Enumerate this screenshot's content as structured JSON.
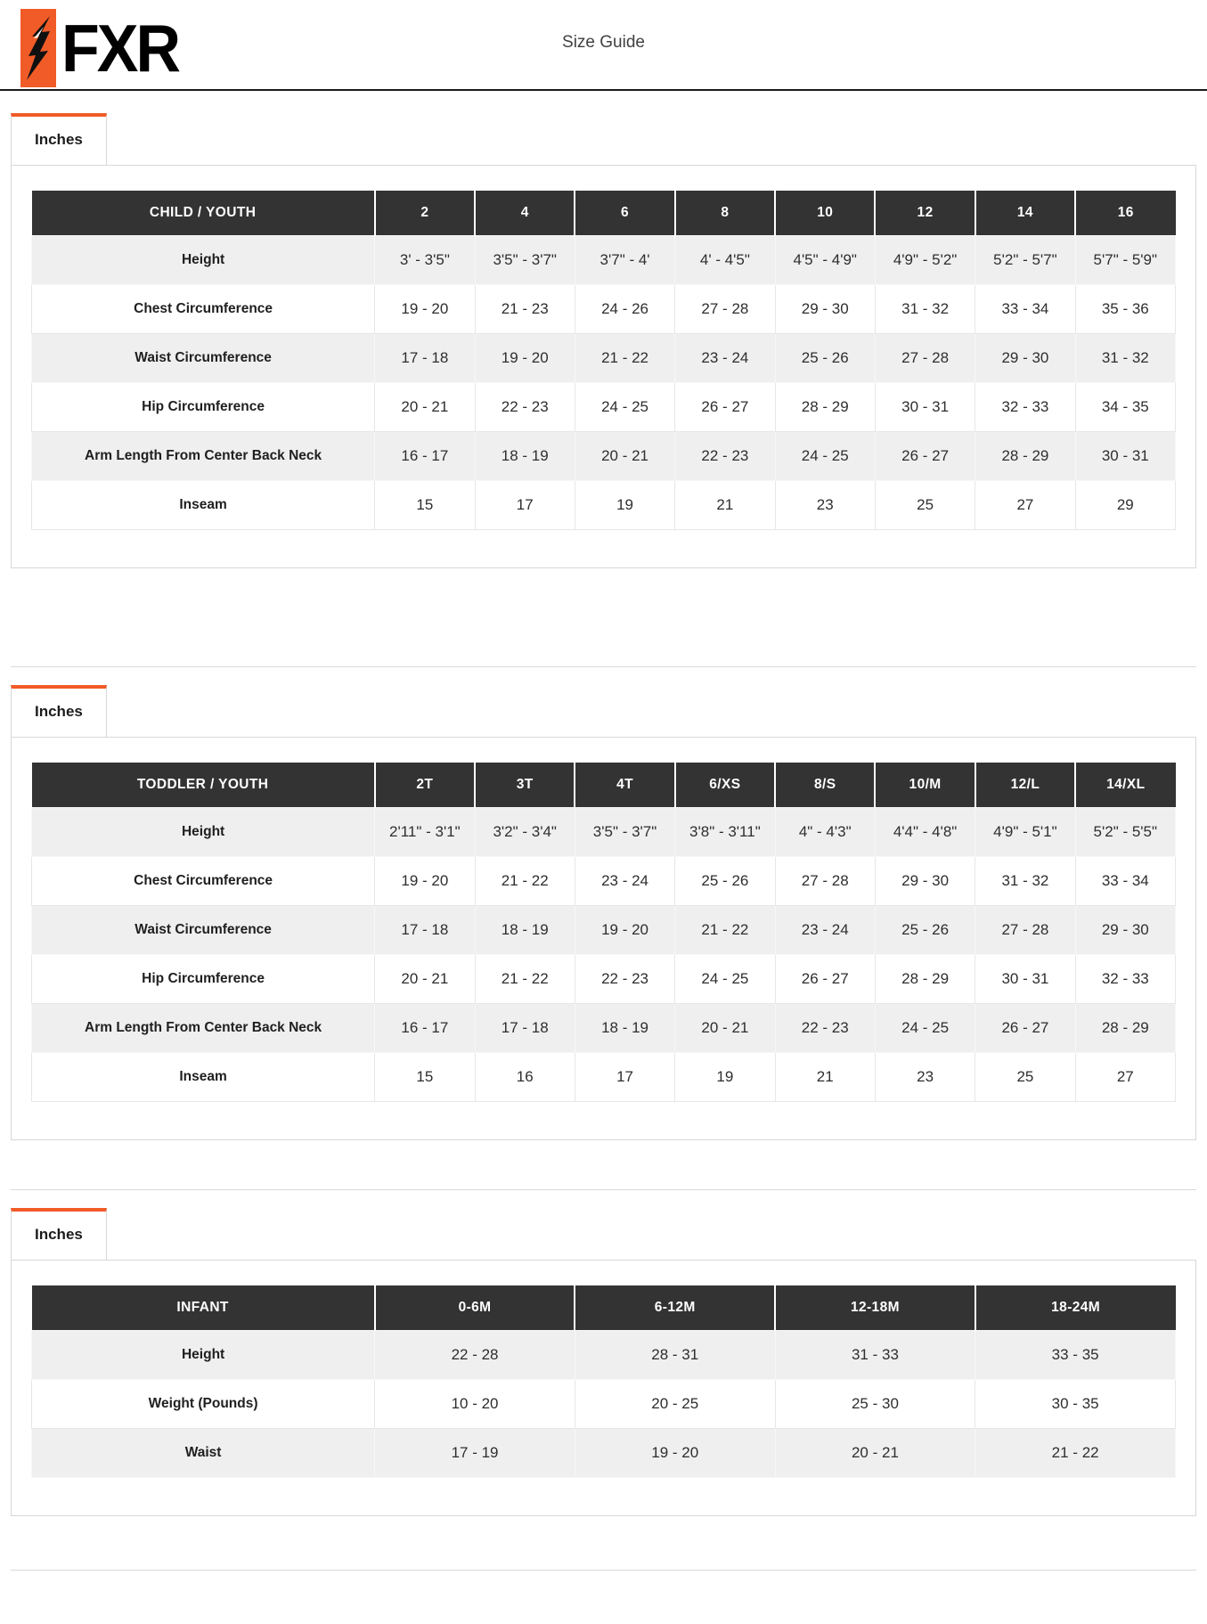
{
  "brand": {
    "logo_text": "FXR",
    "accent_color": "#F15B27",
    "table_header_color": "#333333",
    "row_stripe_color": "#EFEFEF"
  },
  "header": {
    "title": "Size Guide"
  },
  "sections": [
    {
      "tab_label": "Inches",
      "table": {
        "columns": [
          "CHILD / YOUTH",
          "2",
          "4",
          "6",
          "8",
          "10",
          "12",
          "14",
          "16"
        ],
        "rows": [
          {
            "label": "Height",
            "values": [
              "3' - 3'5\"",
              "3'5\" - 3'7\"",
              "3'7\" - 4'",
              "4' - 4'5\"",
              "4'5\" - 4'9\"",
              "4'9\" - 5'2\"",
              "5'2\" - 5'7\"",
              "5'7\" - 5'9\""
            ]
          },
          {
            "label": "Chest Circumference",
            "values": [
              "19 - 20",
              "21 - 23",
              "24 - 26",
              "27 - 28",
              "29 - 30",
              "31 - 32",
              "33 - 34",
              "35 - 36"
            ]
          },
          {
            "label": "Waist Circumference",
            "values": [
              "17 - 18",
              "19 - 20",
              "21 - 22",
              "23 - 24",
              "25 - 26",
              "27 - 28",
              "29 - 30",
              "31 - 32"
            ]
          },
          {
            "label": "Hip Circumference",
            "values": [
              "20 - 21",
              "22 - 23",
              "24 - 25",
              "26 - 27",
              "28 - 29",
              "30 - 31",
              "32 - 33",
              "34 - 35"
            ]
          },
          {
            "label": "Arm Length From Center Back Neck",
            "values": [
              "16 - 17",
              "18 - 19",
              "20 - 21",
              "22 - 23",
              "24 - 25",
              "26 - 27",
              "28 - 29",
              "30 - 31"
            ]
          },
          {
            "label": "Inseam",
            "values": [
              "15",
              "17",
              "19",
              "21",
              "23",
              "25",
              "27",
              "29"
            ]
          }
        ]
      }
    },
    {
      "tab_label": "Inches",
      "table": {
        "columns": [
          "TODDLER / YOUTH",
          "2T",
          "3T",
          "4T",
          "6/XS",
          "8/S",
          "10/M",
          "12/L",
          "14/XL"
        ],
        "rows": [
          {
            "label": "Height",
            "values": [
              "2'11\" - 3'1\"",
              "3'2\" - 3'4\"",
              "3'5\" - 3'7\"",
              "3'8\" - 3'11\"",
              "4\" - 4'3\"",
              "4'4\" - 4'8\"",
              "4'9\" - 5'1\"",
              "5'2\" - 5'5\""
            ]
          },
          {
            "label": "Chest Circumference",
            "values": [
              "19 - 20",
              "21 - 22",
              "23 - 24",
              "25 - 26",
              "27 - 28",
              "29 - 30",
              "31 - 32",
              "33 - 34"
            ]
          },
          {
            "label": "Waist Circumference",
            "values": [
              "17 - 18",
              "18 - 19",
              "19 - 20",
              "21 - 22",
              "23 - 24",
              "25 - 26",
              "27 - 28",
              "29 - 30"
            ]
          },
          {
            "label": "Hip Circumference",
            "values": [
              "20 - 21",
              "21 - 22",
              "22 - 23",
              "24 - 25",
              "26 - 27",
              "28 - 29",
              "30 - 31",
              "32 - 33"
            ]
          },
          {
            "label": "Arm Length From Center Back Neck",
            "values": [
              "16 - 17",
              "17 - 18",
              "18 - 19",
              "20 - 21",
              "22 - 23",
              "24 - 25",
              "26 - 27",
              "28 - 29"
            ]
          },
          {
            "label": "Inseam",
            "values": [
              "15",
              "16",
              "17",
              "19",
              "21",
              "23",
              "25",
              "27"
            ]
          }
        ]
      }
    },
    {
      "tab_label": "Inches",
      "table": {
        "columns": [
          "INFANT",
          "0-6M",
          "6-12M",
          "12-18M",
          "18-24M"
        ],
        "rows": [
          {
            "label": "Height",
            "values": [
              "22 - 28",
              "28 - 31",
              "31 - 33",
              "33 - 35"
            ]
          },
          {
            "label": "Weight (Pounds)",
            "values": [
              "10 - 20",
              "20 - 25",
              "25 - 30",
              "30 - 35"
            ]
          },
          {
            "label": "Waist",
            "values": [
              "17 - 19",
              "19 - 20",
              "20 - 21",
              "21 - 22"
            ]
          }
        ]
      }
    }
  ]
}
